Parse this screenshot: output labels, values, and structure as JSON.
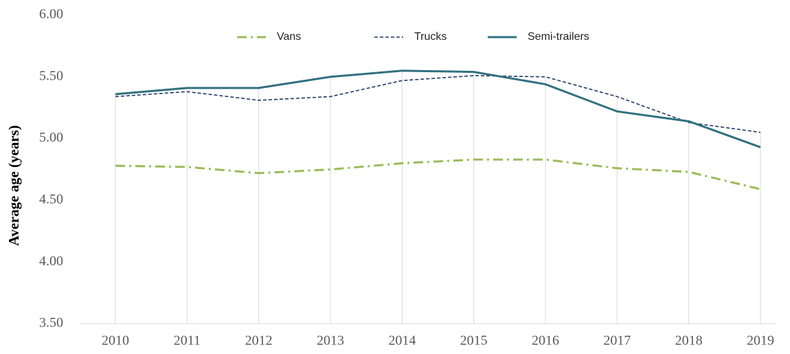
{
  "chart_data": {
    "type": "line",
    "y_label": "Average age (years)",
    "categories": [
      "2010",
      "2011",
      "2012",
      "2013",
      "2014",
      "2015",
      "2016",
      "2017",
      "2018",
      "2019"
    ],
    "series": [
      {
        "name": "Vans",
        "color": "#9bbb59",
        "linestyle": "dashdot",
        "values": [
          4.78,
          4.77,
          4.72,
          4.75,
          4.8,
          4.83,
          4.83,
          4.76,
          4.73,
          4.59
        ]
      },
      {
        "name": "Trucks",
        "color": "#1f3864",
        "linestyle": "dashed",
        "values": [
          5.34,
          5.38,
          5.31,
          5.34,
          5.47,
          5.51,
          5.5,
          5.34,
          5.13,
          5.05
        ]
      },
      {
        "name": "Semi-trailers",
        "color": "#31707f",
        "linestyle": "solid",
        "values": [
          5.36,
          5.41,
          5.41,
          5.5,
          5.55,
          5.54,
          5.44,
          5.22,
          5.14,
          4.93
        ]
      }
    ],
    "ylim": [
      3.5,
      6
    ],
    "yticks": [
      {
        "value": 3.5,
        "label": "3.50"
      },
      {
        "value": 4,
        "label": "4.00"
      },
      {
        "value": 4.5,
        "label": "4.50"
      },
      {
        "value": 5,
        "label": "5.00"
      },
      {
        "value": 5.5,
        "label": "5.50"
      },
      {
        "value": 6,
        "label": "6.00"
      }
    ],
    "legend": "top",
    "drop_lines": true
  }
}
